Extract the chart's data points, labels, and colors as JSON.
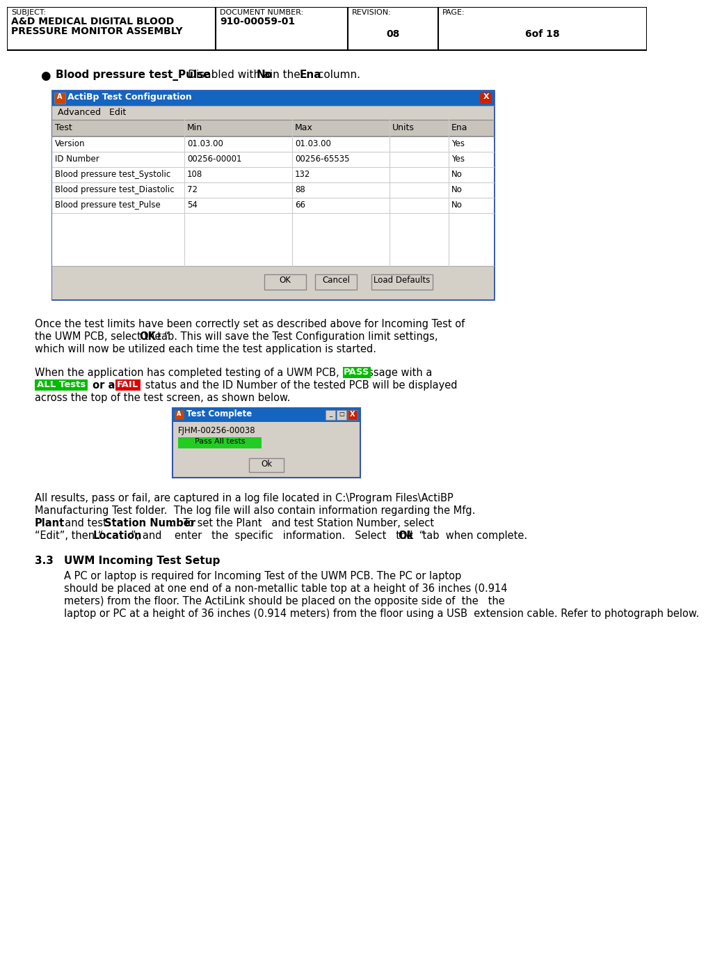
{
  "header": {
    "subject_label": "SUBJECT:",
    "subject_value1": "A&D MEDICAL DIGITAL BLOOD",
    "subject_value2": "PRESSURE MONITOR ASSEMBLY",
    "doc_num_label": "DOCUMENT NUMBER:",
    "doc_num_value": "910-00059-01",
    "revision_label": "REVISION:",
    "revision_value": "08",
    "page_label": "PAGE:",
    "page_value": "6of 18"
  },
  "bullet_bold": "Blood pressure test_Pulse",
  "bullet_normal": " - Disabled with a ",
  "bullet_bold2": "No",
  "bullet_mid": " in the ",
  "bullet_bold3": "Ena",
  "bullet_end": " column.",
  "dialog_title": "ActiBp Test Configuration",
  "menu_items": "Advanced   Edit",
  "table_headers": [
    "Test",
    "Min",
    "Max",
    "Units",
    "Ena"
  ],
  "table_rows": [
    [
      "Version",
      "01.03.00",
      "01.03.00",
      "",
      "Yes"
    ],
    [
      "ID Number",
      "00256-00001",
      "00256-65535",
      "",
      "Yes"
    ],
    [
      "Blood pressure test_Systolic",
      "108",
      "132",
      "",
      "No"
    ],
    [
      "Blood pressure test_Diastolic",
      "72",
      "88",
      "",
      "No"
    ],
    [
      "Blood pressure test_Pulse",
      "54",
      "66",
      "",
      "No"
    ]
  ],
  "dialog_buttons": [
    "OK",
    "Cancel",
    "Load Defaults"
  ],
  "para1_lines": [
    "Once the test limits have been correctly set as described above for Incoming Test of",
    "the UWM PCB, select the “OK” tab. This will save the Test Configuration limit settings,",
    "which will now be utilized each time the test application is started."
  ],
  "para2_line1_pre": "When the application has completed testing of a UWM PCB, a message with a ",
  "para2_line2_post": " or a ",
  "para2_line2_rest": " status and the ID Number of the tested PCB will be displayed",
  "para2_line3": "across the top of the test screen, as shown below.",
  "test_complete_title": "Test Complete",
  "test_complete_id": "FJHM-00256-00038",
  "test_complete_pass": "Pass All tests",
  "test_complete_ok": "Ok",
  "para3_lines": [
    "All results, pass or fail, are captured in a log file located in C:\\Program Files\\ActiBP",
    "Manufacturing Test folder.  The log file will also contain information regarding the Mfg."
  ],
  "para3_line3_pre": "  and test ",
  "para3_line3_bold2": "Station Number",
  "para3_line3_post": ".   To set the Plant   and test Station Number, select",
  "para3_line4_pre": "“Edit”, then “",
  "para3_line4_bold": "Location",
  "para3_line4_mid": "”, and    enter   the  specific   information.   Select   the  “",
  "para3_line4_bold2": "Ok",
  "para3_line4_end": "”   tab  when complete.",
  "section_num": "3.3",
  "section_title": "UWM Incoming Test Setup",
  "sec_lines": [
    "A PC or laptop is required for Incoming Test of the UWM PCB. The PC or laptop",
    "should be placed at one end of a non-metallic table top at a height of 36 inches (0.914",
    "meters) from the floor. The ActiLink should be placed on the opposite side of  the   the",
    "laptop or PC at a height of 36 inches (0.914 meters) from the floor using a USB  extension cable. Refer to photograph below."
  ],
  "bg_color": "#ffffff",
  "pass_bg": "#00bb00",
  "fail_bg": "#dd0000",
  "dialog_blue": "#1565c0",
  "dialog_bg": "#d4d0c8",
  "close_red": "#cc2200",
  "table_header_bg": "#c8c4bc",
  "table_row_bg": "#ffffff",
  "mini_pass_bg": "#22cc22"
}
